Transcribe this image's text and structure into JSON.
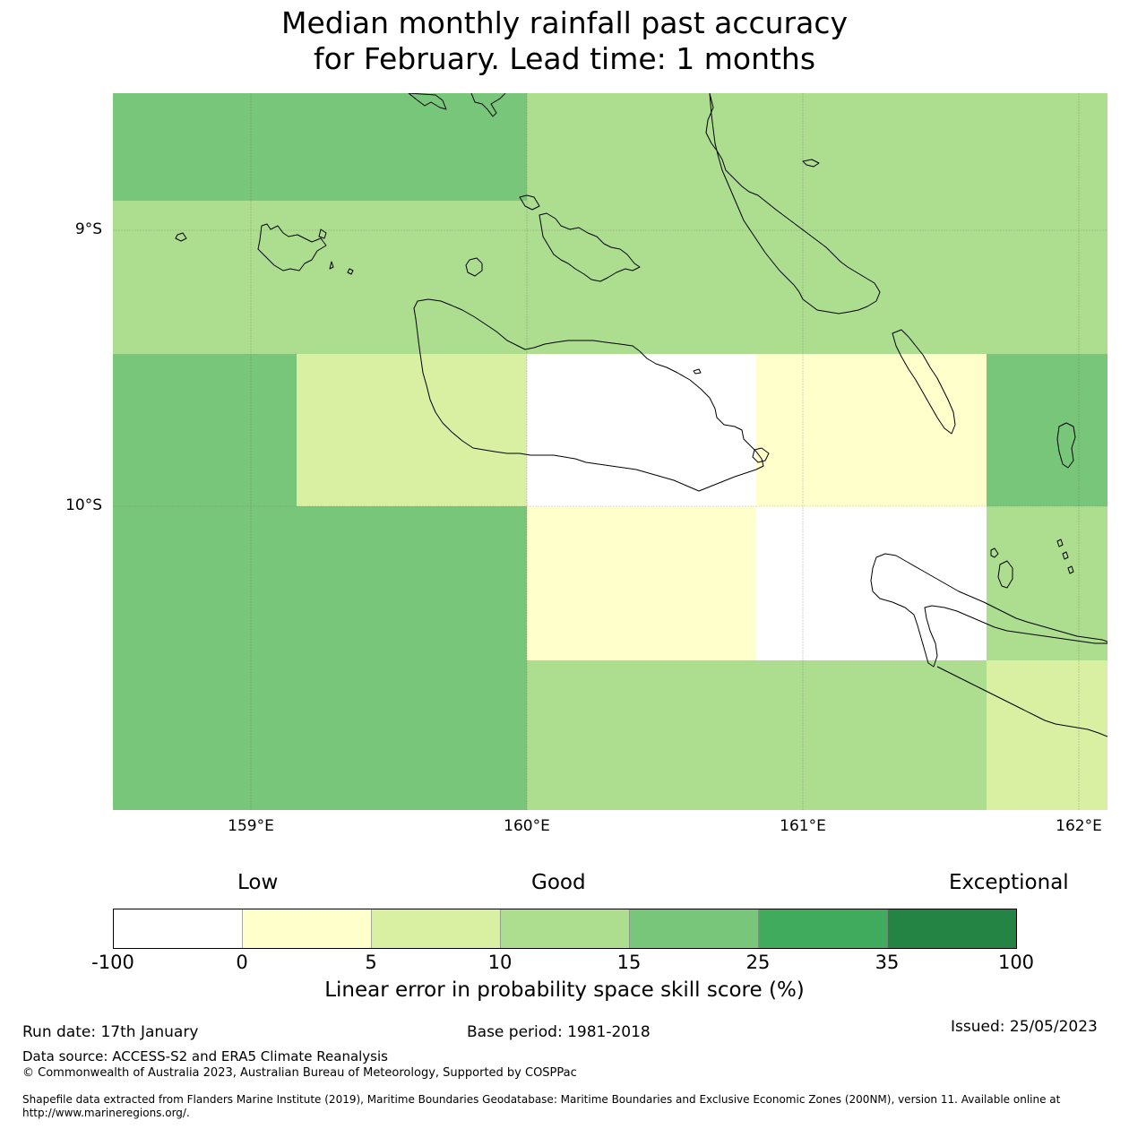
{
  "title": {
    "line1": "Median monthly rainfall past accuracy",
    "line2": "for February. Lead time: 1 months"
  },
  "map": {
    "lat_labels": [
      "9°S",
      "10°S"
    ],
    "lon_labels": [
      "159°E",
      "160°E",
      "161°E",
      "162°E"
    ],
    "land_outline_color": "#000000",
    "grid_line_color": "#666666"
  },
  "colorbar": {
    "categories": [
      "Low",
      "Good",
      "Exceptional"
    ],
    "ticks": [
      "-100",
      "0",
      "5",
      "10",
      "15",
      "25",
      "35",
      "100"
    ],
    "colors": [
      "#ffffff",
      "#ffffcc",
      "#d9f0a3",
      "#addd8e",
      "#78c679",
      "#41ab5d",
      "#238443"
    ],
    "title": "Linear error in probability space skill score (%)"
  },
  "footer": {
    "run_date": "Run date: 17th January",
    "base_period": "Base period: 1981-2018",
    "issued": "Issued: 25/05/2023",
    "data_source": "Data source: ACCESS-S2 and ERA5 Climate Reanalysis",
    "copyright": "© Commonwealth of Australia 2023, Australian Bureau of Meteorology, Supported by COSPPac",
    "shapefile_line1": "Shapefile data extracted from Flanders Marine Institute (2019), Maritime Boundaries Geodatabase: Maritime Boundaries and Exclusive Economic Zones (200NM), version 11. Available online at",
    "shapefile_line2": "http://www.marineregions.org/."
  }
}
